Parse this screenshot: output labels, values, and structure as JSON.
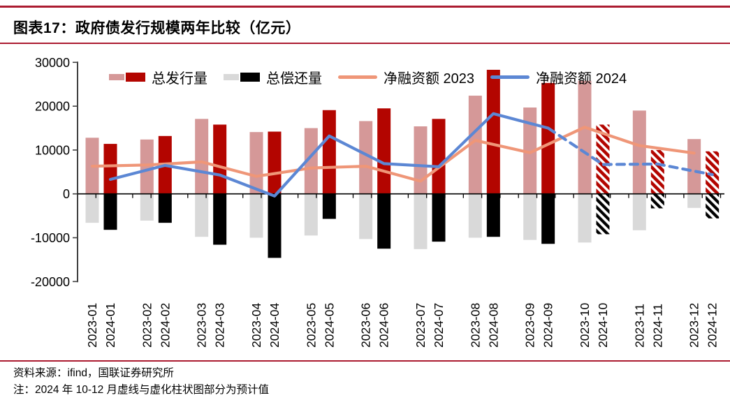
{
  "title": "图表17：政府债发行规模两年比较（亿元）",
  "legend": {
    "issuance": "总发行量",
    "repayment": "总偿还量",
    "net_2023": "净融资额 2023",
    "net_2024": "净融资额 2024"
  },
  "footer": {
    "source": "资料来源：ifind，国联证券研究所",
    "note": "注：2024 年 10-12 月虚线与虚化柱状图部分为预计值"
  },
  "colors": {
    "rule": "#ab1b30",
    "issuance_2023": "#d59898",
    "issuance_2024": "#b30500",
    "repayment_2023": "#d9d9d9",
    "repayment_2024": "#000000",
    "net_2023": "#ef9678",
    "net_2024": "#5c87d4"
  },
  "chart_data": {
    "type": "bar",
    "combo": "paired year-over-year bars with net-financing lines",
    "unit": "亿元",
    "title": "政府债发行规模两年比较（亿元）",
    "months": [
      "01",
      "02",
      "03",
      "04",
      "05",
      "06",
      "07",
      "08",
      "09",
      "10",
      "11",
      "12"
    ],
    "x_labels": [
      "2023-01",
      "2024-01",
      "2023-02",
      "2024-02",
      "2023-03",
      "2024-03",
      "2023-04",
      "2024-04",
      "2023-05",
      "2024-05",
      "2023-06",
      "2024-06",
      "2023-07",
      "2024-07",
      "2023-08",
      "2024-08",
      "2023-09",
      "2024-09",
      "2023-10",
      "2024-10",
      "2023-11",
      "2024-11",
      "2023-12",
      "2024-12"
    ],
    "yticks": [
      30000,
      20000,
      10000,
      0,
      -10000,
      -20000
    ],
    "ylim": [
      -20000,
      30000
    ],
    "grid": false,
    "legend_position": "top",
    "forecast_note": "2024-10 至 2024-12 为预计值（虚线与虚化柱状图）",
    "series": [
      {
        "name": "总发行量 2023",
        "type": "bar",
        "role": "issuance-2023",
        "values": [
          12800,
          12400,
          17100,
          14100,
          15000,
          16600,
          15400,
          22400,
          19700,
          25800,
          19000,
          12500
        ]
      },
      {
        "name": "总发行量 2024",
        "type": "bar",
        "role": "issuance-2024",
        "values": [
          11400,
          13200,
          15800,
          14200,
          19100,
          19500,
          17100,
          28300,
          25300,
          15800,
          10000,
          9700
        ],
        "forecast_from": "2024-10",
        "forecast_style": "hatched"
      },
      {
        "name": "总偿还量 2023",
        "type": "bar",
        "role": "repayment-2023",
        "values": [
          -6600,
          -6100,
          -9800,
          -10000,
          -9500,
          -10300,
          -12600,
          -10000,
          -10500,
          -11100,
          -8300,
          -3200
        ]
      },
      {
        "name": "总偿还量 2024",
        "type": "bar",
        "role": "repayment-2024",
        "values": [
          -8200,
          -6600,
          -11600,
          -14600,
          -5700,
          -12500,
          -10900,
          -9800,
          -11400,
          -9200,
          -3300,
          -5600
        ],
        "forecast_from": "2024-10",
        "forecast_style": "hatched"
      },
      {
        "name": "净融资额 2023",
        "type": "line",
        "role": "net-2023",
        "values": [
          6300,
          6600,
          7300,
          4000,
          5900,
          6300,
          2900,
          12200,
          9400,
          15200,
          11000,
          9300
        ]
      },
      {
        "name": "净融资额 2024",
        "type": "line",
        "role": "net-2024",
        "values": [
          3300,
          6500,
          4300,
          -500,
          13200,
          6900,
          6200,
          18300,
          15000,
          6700,
          6800,
          4400
        ],
        "forecast_from": "2024-10",
        "forecast_style": "dashed"
      }
    ]
  }
}
